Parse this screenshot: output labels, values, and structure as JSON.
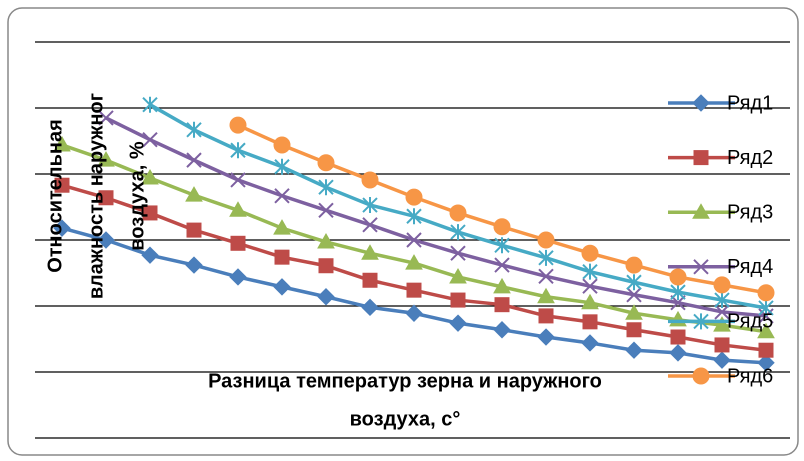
{
  "chart_data": {
    "type": "line",
    "y_label_lines": [
      "Относительная",
      "влажность наружног",
      "воздуха, %"
    ],
    "x_label_lines": [
      "Разница температур зерна и наружного",
      "воздуха, с°"
    ],
    "categories": [
      null,
      null,
      null,
      null,
      null,
      null,
      null,
      null,
      null,
      null,
      null,
      null,
      null,
      null,
      null,
      null,
      null
    ],
    "ylim": [
      0,
      60
    ],
    "yticks": [
      0,
      10,
      20,
      30,
      40,
      50,
      60
    ],
    "grid": true,
    "legend": "right",
    "series": [
      {
        "name": "Ряд1",
        "color": "#4a7ebb",
        "marker": "diamond",
        "values": [
          31.8,
          30.0,
          27.7,
          26.2,
          24.4,
          22.9,
          21.4,
          19.8,
          18.9,
          17.4,
          16.4,
          15.3,
          14.4,
          13.3,
          12.9,
          11.8,
          11.4
        ]
      },
      {
        "name": "Ряд2",
        "color": "#be4b48",
        "marker": "square",
        "values": [
          38.3,
          36.4,
          34.1,
          31.5,
          29.5,
          27.4,
          26.1,
          23.9,
          22.4,
          20.9,
          20.2,
          18.5,
          17.6,
          16.4,
          15.3,
          14.1,
          13.3
        ]
      },
      {
        "name": "Ряд3",
        "color": "#98b954",
        "marker": "triangle",
        "values": [
          44.4,
          42.1,
          39.4,
          36.8,
          34.5,
          31.8,
          29.7,
          28.0,
          26.5,
          24.4,
          22.9,
          21.4,
          20.5,
          18.9,
          17.9,
          17.1,
          16.1
        ]
      },
      {
        "name": "Ряд4",
        "color": "#7d60a0",
        "marker": "x",
        "values": [
          null,
          48.5,
          45.2,
          42.1,
          39.1,
          36.7,
          34.5,
          32.3,
          30.0,
          28.0,
          26.2,
          24.5,
          23.0,
          21.7,
          20.5,
          19.1,
          18.5
        ]
      },
      {
        "name": "Ряд5",
        "color": "#46aac5",
        "marker": "star",
        "values": [
          null,
          null,
          50.5,
          46.7,
          43.6,
          41.1,
          38.0,
          35.3,
          33.6,
          31.2,
          29.2,
          27.3,
          25.2,
          23.6,
          22.1,
          20.9,
          19.7
        ]
      },
      {
        "name": "Ряд6",
        "color": "#f79646",
        "marker": "circle",
        "values": [
          null,
          null,
          null,
          null,
          47.4,
          44.4,
          41.7,
          39.1,
          36.5,
          34.1,
          32.0,
          30.0,
          28.0,
          26.2,
          24.4,
          23.2,
          22.0
        ]
      }
    ]
  }
}
